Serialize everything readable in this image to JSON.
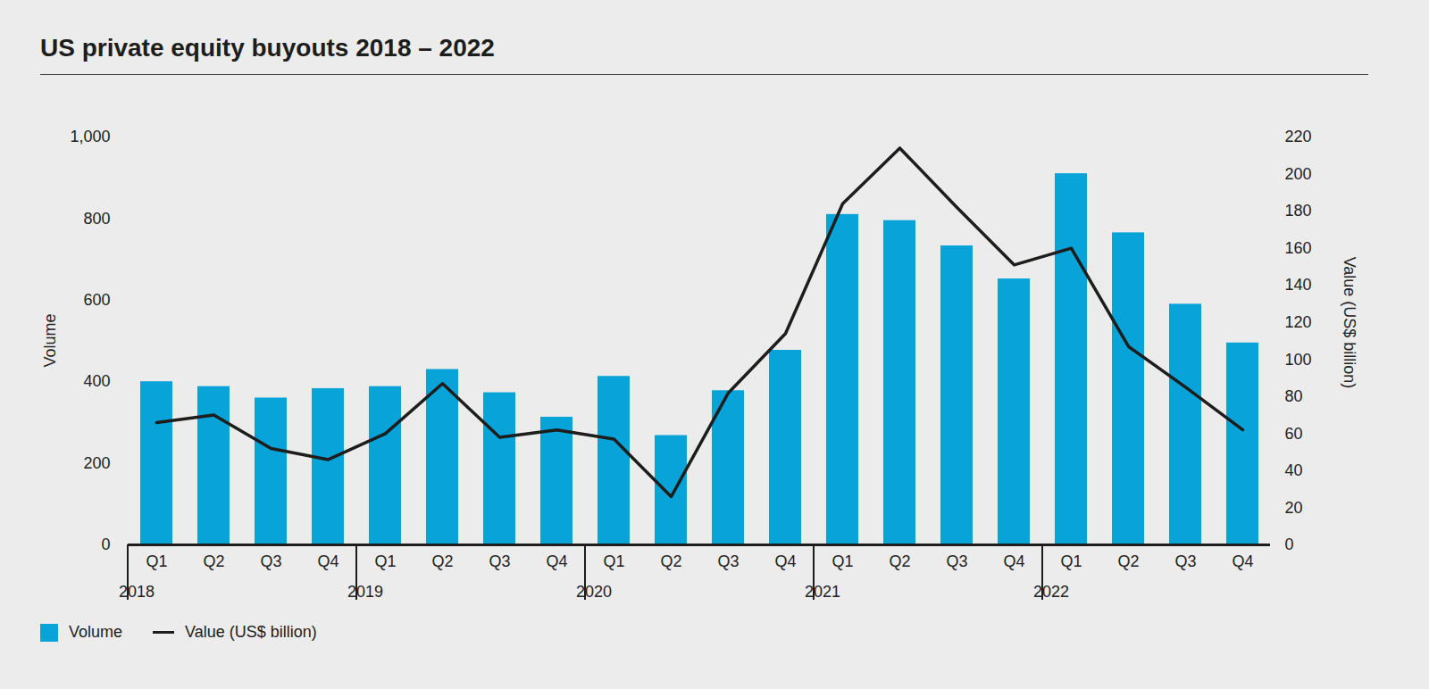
{
  "chart_data": {
    "type": "bar",
    "title": "US private equity buyouts 2018 – 2022",
    "categories": [
      "Q1",
      "Q2",
      "Q3",
      "Q4",
      "Q1",
      "Q2",
      "Q3",
      "Q4",
      "Q1",
      "Q2",
      "Q3",
      "Q4",
      "Q1",
      "Q2",
      "Q3",
      "Q4",
      "Q1",
      "Q2",
      "Q3",
      "Q4"
    ],
    "year_labels": [
      "2018",
      "2019",
      "2020",
      "2021",
      "2022"
    ],
    "ylabel": "Volume",
    "y2label": "Value (US$ billion)",
    "ylim": [
      0,
      1000
    ],
    "yticks": [
      0,
      200,
      400,
      600,
      800,
      {
        "value": 1000,
        "label": "1,000"
      }
    ],
    "y2lim": [
      0,
      220
    ],
    "y2ticks": [
      0,
      20,
      40,
      60,
      80,
      100,
      120,
      140,
      160,
      180,
      200,
      220
    ],
    "series": [
      {
        "name": "Volume",
        "type": "bar",
        "color": "#08a4d9",
        "values": [
          400,
          388,
          360,
          383,
          388,
          430,
          373,
          313,
          413,
          268,
          378,
          477,
          810,
          795,
          733,
          652,
          910,
          765,
          590,
          495
        ]
      },
      {
        "name": "Value (US$ billion)",
        "type": "line",
        "color": "#1d1d1b",
        "axis": "y2",
        "values": [
          66,
          70,
          52,
          46,
          60,
          87,
          58,
          62,
          57,
          26,
          82,
          114,
          184,
          214,
          182,
          151,
          160,
          107,
          85,
          62
        ]
      }
    ],
    "grid": false,
    "legend": "bottom left"
  }
}
